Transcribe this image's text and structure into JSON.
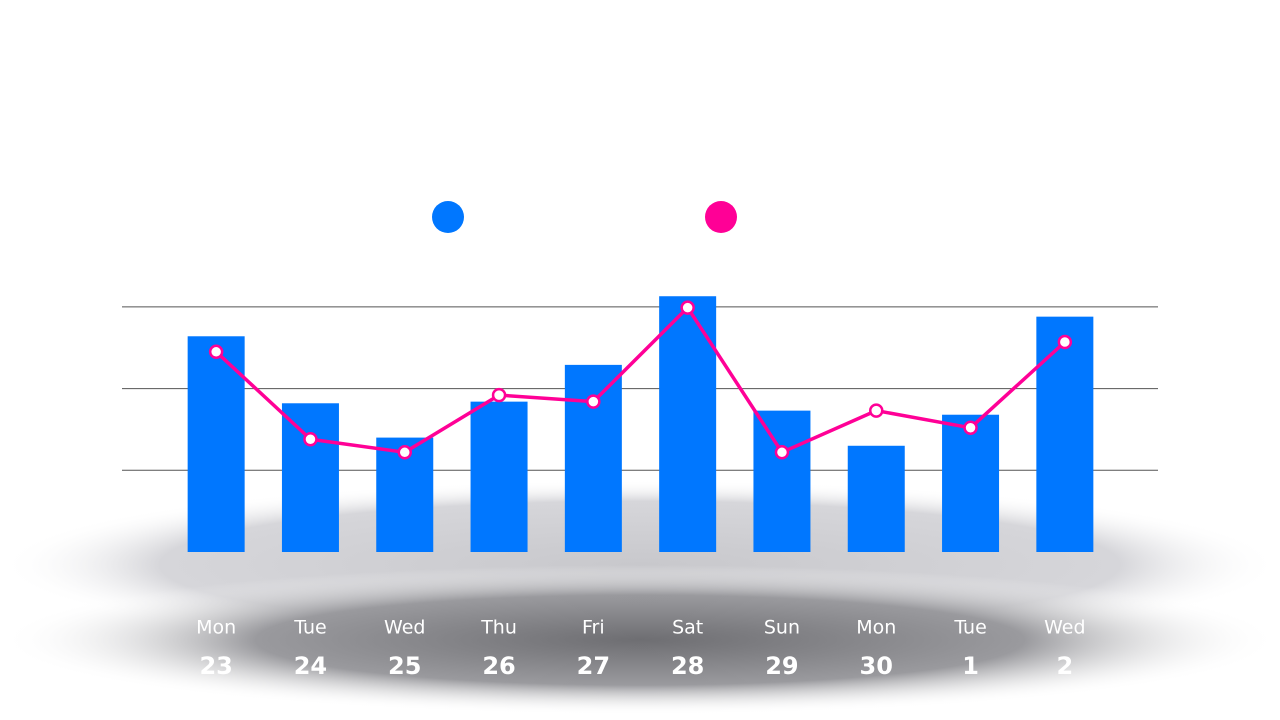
{
  "chart_data": {
    "type": "bar-line",
    "categories": [
      "Mon",
      "Tue",
      "Wed",
      "Thu",
      "Fri",
      "Sat",
      "Sun",
      "Mon",
      "Tue",
      "Wed"
    ],
    "day_numbers": [
      23,
      24,
      25,
      26,
      27,
      28,
      29,
      30,
      1,
      2
    ],
    "series": [
      {
        "type": "bar",
        "color": "#0077ff",
        "values": [
          2.64,
          1.82,
          1.4,
          1.84,
          2.29,
          3.13,
          1.73,
          1.3,
          1.68,
          2.88
        ]
      },
      {
        "type": "line",
        "color": "#ff0096",
        "values": [
          2.45,
          1.38,
          1.22,
          1.92,
          1.84,
          2.99,
          1.22,
          1.73,
          1.52,
          2.57
        ]
      }
    ],
    "ylim": [
      0,
      3.5
    ],
    "yticks": [
      1,
      2,
      3
    ],
    "grid": true
  }
}
